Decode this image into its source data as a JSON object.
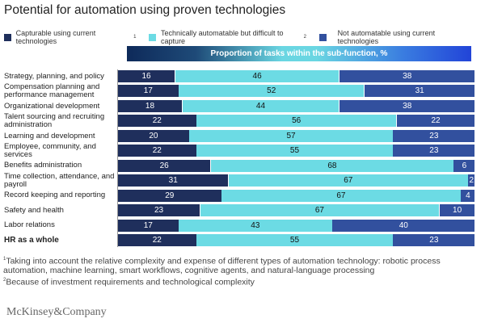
{
  "chart_data": {
    "type": "bar",
    "stacked": true,
    "orientation": "horizontal",
    "title": "Potential for automation using proven technologies",
    "header": "Proportion of tasks within the sub-function, %",
    "categories": [
      "Strategy, planning, and policy",
      "Compensation planning and performance management",
      "Organizational development",
      "Talent sourcing and recruiting administration",
      "Learning and development",
      "Employee, community, and services",
      "Benefits administration",
      "Time collection, attendance, and payroll",
      "Record keeping and reporting",
      "Safety and health",
      "Labor relations",
      "HR as a whole"
    ],
    "bold_category": "HR as a whole",
    "series": [
      {
        "name": "Capturable using current technologies",
        "sup": "1",
        "color": "#1f2f5c",
        "label_color": "#ffffff",
        "values": [
          16,
          17,
          18,
          22,
          20,
          22,
          26,
          31,
          29,
          23,
          17,
          22
        ]
      },
      {
        "name": "Technically automatable but difficult to capture",
        "sup": "2",
        "color": "#6cdbe4",
        "label_color": "#111111",
        "values": [
          46,
          52,
          44,
          56,
          57,
          55,
          68,
          67,
          67,
          67,
          43,
          55
        ]
      },
      {
        "name": "Not automatable using current technologies",
        "sup": "",
        "color": "#32509e",
        "label_color": "#ffffff",
        "values": [
          38,
          31,
          38,
          22,
          23,
          23,
          6,
          2,
          4,
          10,
          40,
          23
        ]
      }
    ],
    "xlim": [
      0,
      100
    ],
    "grid": false,
    "legend_position": "top-left"
  },
  "footnotes": [
    "Taking into account the relative complexity and expense of different types of automation technology: robotic process automation, machine learning, smart workflows, cognitive agents, and natural-language processing",
    "Because of investment requirements and technological complexity"
  ],
  "footnote_marks": [
    "1",
    "2"
  ],
  "logo": "McKinsey&Company"
}
